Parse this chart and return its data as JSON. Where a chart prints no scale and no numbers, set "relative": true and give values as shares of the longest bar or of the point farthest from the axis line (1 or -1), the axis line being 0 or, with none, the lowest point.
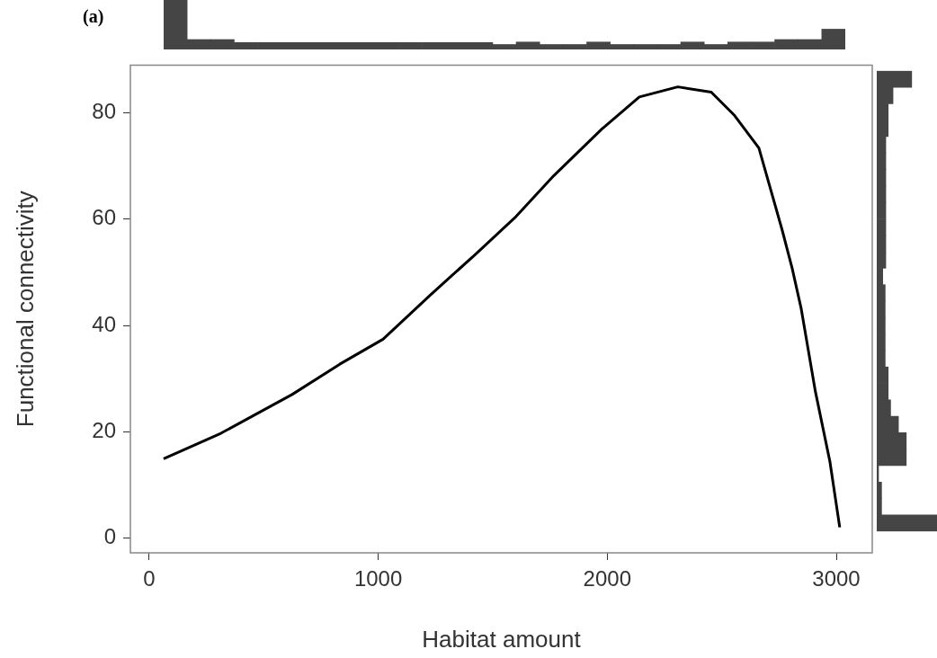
{
  "chart_data": [
    {
      "type": "bar",
      "title": "(a)",
      "relative": true,
      "color": "#454545",
      "categories": [
        null,
        null,
        null,
        null,
        null,
        null,
        null,
        null,
        null,
        null,
        null,
        null,
        null,
        null,
        null,
        null,
        null,
        null,
        null,
        null,
        null,
        null,
        null,
        null,
        null,
        null,
        null,
        null,
        null
      ],
      "values": [
        1,
        0.2,
        0.2,
        0.14,
        0.14,
        0.14,
        0.14,
        0.14,
        0.14,
        0.14,
        0.14,
        0.14,
        0.14,
        0.14,
        0.1,
        0.15,
        0.1,
        0.1,
        0.15,
        0.1,
        0.1,
        0.1,
        0.15,
        0.1,
        0.15,
        0.15,
        0.2,
        0.2,
        0.41
      ]
    },
    {
      "type": "line",
      "xlabel": "Habitat amount",
      "ylabel": "Functional connectivity",
      "xlim": [
        -82,
        3157
      ],
      "xticks": [
        0,
        1000,
        2000,
        3000
      ],
      "ylim": [
        -2.8,
        89
      ],
      "yticks": [
        0,
        20,
        40,
        60,
        80
      ],
      "grid": false,
      "marker": "none",
      "series": [
        {
          "color": "#000000",
          "x": [
            63,
            313,
            624,
            832,
            1021,
            1227,
            1425,
            1602,
            1767,
            1975,
            2140,
            2308,
            2454,
            2556,
            2662,
            2764,
            2807,
            2847,
            2909,
            2972,
            3015
          ],
          "values": [
            14.9,
            19.7,
            27,
            32.7,
            37.4,
            45.7,
            53.4,
            60.5,
            68.2,
            76.9,
            83,
            84.9,
            83.9,
            79.5,
            73.4,
            57.9,
            50.8,
            43.1,
            27.5,
            14.4,
            2
          ]
        }
      ]
    },
    {
      "type": "bar",
      "orientation": "horizontal",
      "relative": true,
      "color": "#454545",
      "categories": [
        null,
        null,
        null,
        null,
        null,
        null,
        null,
        null,
        null,
        null,
        null,
        null,
        null,
        null,
        null,
        null,
        null,
        null,
        null,
        null,
        null,
        null,
        null,
        null,
        null,
        null,
        null,
        null
      ],
      "values": [
        0.58,
        0.27,
        0.19,
        0.19,
        0.15,
        0.15,
        0.15,
        0.15,
        0.15,
        0.15,
        0.15,
        0.15,
        0.1,
        0.14,
        0.14,
        0.14,
        0.14,
        0.14,
        0.19,
        0.19,
        0.23,
        0.36,
        0.49,
        0.49,
        0.03,
        0.08,
        0.08,
        1
      ]
    }
  ]
}
